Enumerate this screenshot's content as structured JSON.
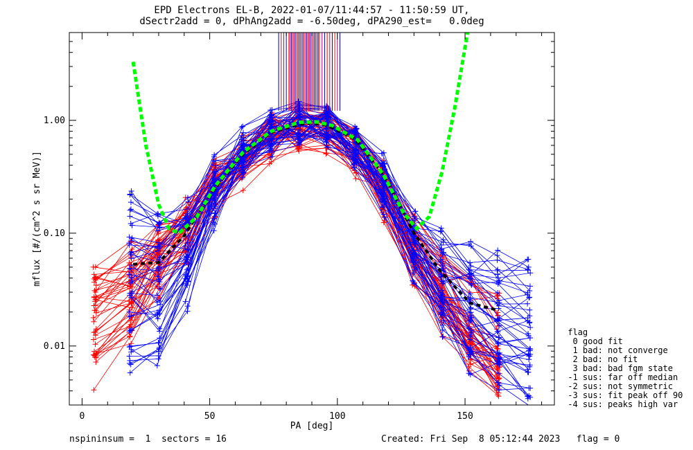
{
  "title_line1": "EPD Electrons EL-B, 2022-01-07/11:44:57 - 11:50:59 UT,",
  "title_line2": "dSectr2add = 0, dPhAng2add = -6.50deg, dPA290_est=   0.0deg",
  "footer": {
    "left": "nspininsum =  1  sectors = 16",
    "right": "Created: Fri Sep  8 05:12:44 2023   flag = 0"
  },
  "legend": [
    " flag",
    "  0 good fit",
    "  1 bad: not converge",
    "  2 bad: no fit",
    "  3 bad: bad fgm state",
    " -1 sus: far off median",
    " -2 sus: not symmetric",
    " -3 sus: fit peak off 90",
    " -4 sus: peaks high var"
  ],
  "colors": {
    "red_traces": "#ff0000",
    "blue_traces": "#0000ff",
    "fit_green": "#00ff00",
    "median_black": "#000000",
    "peak_marks": [
      "#0000aa",
      "#ff0000",
      "#aa0077"
    ]
  },
  "chart_data": {
    "type": "line",
    "xlabel": "PA [deg]",
    "ylabel": "mflux [#/(cm^2 s sr MeV)]",
    "xlim": [
      -5,
      185
    ],
    "ylim": [
      0.003,
      6
    ],
    "yscale": "log",
    "x_ticks": [
      0,
      50,
      100,
      150
    ],
    "x_tick_labels": [
      "0",
      "50",
      "100",
      "150"
    ],
    "y_ticks": [
      0.01,
      0.1,
      1.0
    ],
    "y_tick_labels": [
      "0.01",
      "0.10",
      "1.00"
    ],
    "grid": false,
    "legend_placement": "right-outside",
    "median_profile": {
      "x": [
        20,
        30,
        40,
        52,
        63,
        74,
        85,
        90,
        96,
        107,
        118,
        130,
        140,
        152,
        162
      ],
      "y": [
        0.053,
        0.055,
        0.095,
        0.25,
        0.5,
        0.78,
        0.92,
        0.95,
        0.9,
        0.68,
        0.33,
        0.1,
        0.047,
        0.024,
        0.021
      ]
    },
    "fit_curve": {
      "x": [
        20,
        25,
        30,
        34,
        38,
        45,
        52,
        63,
        74,
        85,
        92,
        98,
        108,
        118,
        126,
        131,
        136,
        141,
        146,
        151
      ],
      "y": [
        3.3,
        0.6,
        0.18,
        0.11,
        0.1,
        0.14,
        0.26,
        0.52,
        0.8,
        0.96,
        0.97,
        0.9,
        0.67,
        0.33,
        0.15,
        0.11,
        0.14,
        0.35,
        1.3,
        6
      ]
    },
    "peak_markers_x": [
      77,
      78,
      79,
      80,
      81,
      81.5,
      82,
      82.5,
      83,
      83.5,
      84,
      84.5,
      85,
      85.5,
      86,
      86.5,
      87,
      87.5,
      88,
      88.5,
      89,
      89.5,
      90,
      90.5,
      91,
      91.5,
      92,
      92.5,
      93,
      94,
      95,
      96,
      97,
      98,
      99,
      100,
      101
    ],
    "series": [
      {
        "x": [
          5,
          19,
          30,
          41,
          52,
          63,
          74,
          85,
          96,
          107,
          118,
          130,
          141,
          152,
          163
        ],
        "y": [
          0.045,
          0.06,
          0.09,
          0.15,
          0.3,
          0.5,
          0.75,
          0.9,
          0.85,
          0.6,
          0.3,
          0.09,
          0.04,
          0.015,
          0.008
        ]
      },
      {
        "x": [
          5,
          19,
          30,
          41,
          52,
          63,
          74,
          85,
          96,
          107,
          118,
          130,
          141,
          152,
          163
        ],
        "y": [
          0.02,
          0.03,
          0.06,
          0.12,
          0.28,
          0.45,
          0.7,
          0.85,
          0.8,
          0.55,
          0.25,
          0.07,
          0.03,
          0.012,
          0.006
        ]
      },
      {
        "x": [
          5,
          19,
          30,
          41,
          52,
          63,
          74,
          85,
          96,
          107,
          118,
          130,
          141,
          152,
          163
        ],
        "y": [
          0.012,
          0.02,
          0.05,
          0.1,
          0.22,
          0.4,
          0.65,
          0.8,
          0.78,
          0.5,
          0.2,
          0.05,
          0.02,
          0.009,
          0.005
        ]
      },
      {
        "x": [
          5,
          19,
          30,
          41,
          52,
          63,
          74,
          85,
          96,
          107,
          118,
          130,
          141,
          152,
          163
        ],
        "y": [
          0.006,
          0.015,
          0.04,
          0.08,
          0.2,
          0.35,
          0.6,
          0.78,
          0.75,
          0.45,
          0.18,
          0.045,
          0.018,
          0.01,
          0.007
        ]
      },
      {
        "x": [
          5,
          19,
          30,
          41,
          52,
          63,
          74,
          85,
          96,
          107,
          118,
          130,
          141,
          152,
          163
        ],
        "y": [
          0.03,
          0.045,
          0.08,
          0.14,
          0.32,
          0.55,
          0.8,
          0.92,
          0.88,
          0.62,
          0.32,
          0.1,
          0.05,
          0.03,
          0.02
        ]
      },
      {
        "x": [
          19,
          30,
          41,
          52,
          63,
          74,
          85,
          96,
          107,
          118,
          130,
          141,
          152,
          163,
          175
        ],
        "y": [
          0.16,
          0.12,
          0.16,
          0.35,
          0.6,
          0.85,
          1.0,
          0.95,
          0.7,
          0.35,
          0.12,
          0.08,
          0.06,
          0.05,
          0.04
        ]
      },
      {
        "x": [
          19,
          30,
          41,
          52,
          63,
          74,
          85,
          96,
          107,
          118,
          130,
          141,
          152,
          163,
          175
        ],
        "y": [
          0.07,
          0.06,
          0.1,
          0.3,
          0.55,
          0.8,
          0.95,
          0.92,
          0.65,
          0.3,
          0.09,
          0.05,
          0.03,
          0.025,
          0.02
        ]
      },
      {
        "x": [
          19,
          30,
          41,
          52,
          63,
          74,
          85,
          96,
          107,
          118,
          130,
          141,
          152,
          163,
          175
        ],
        "y": [
          0.04,
          0.035,
          0.07,
          0.25,
          0.5,
          0.75,
          0.92,
          0.9,
          0.6,
          0.25,
          0.07,
          0.035,
          0.02,
          0.015,
          0.012
        ]
      },
      {
        "x": [
          19,
          30,
          41,
          52,
          63,
          74,
          85,
          96,
          107,
          118,
          130,
          141,
          152,
          163,
          175
        ],
        "y": [
          0.02,
          0.018,
          0.05,
          0.2,
          0.45,
          0.72,
          0.9,
          0.88,
          0.58,
          0.22,
          0.06,
          0.025,
          0.012,
          0.01,
          0.009
        ]
      },
      {
        "x": [
          19,
          30,
          41,
          52,
          63,
          74,
          85,
          96,
          107,
          118,
          130,
          141,
          152,
          163,
          175
        ],
        "y": [
          0.008,
          0.01,
          0.03,
          0.15,
          0.4,
          0.7,
          0.88,
          0.86,
          0.55,
          0.2,
          0.05,
          0.018,
          0.008,
          0.006,
          0.004
        ]
      }
    ]
  }
}
